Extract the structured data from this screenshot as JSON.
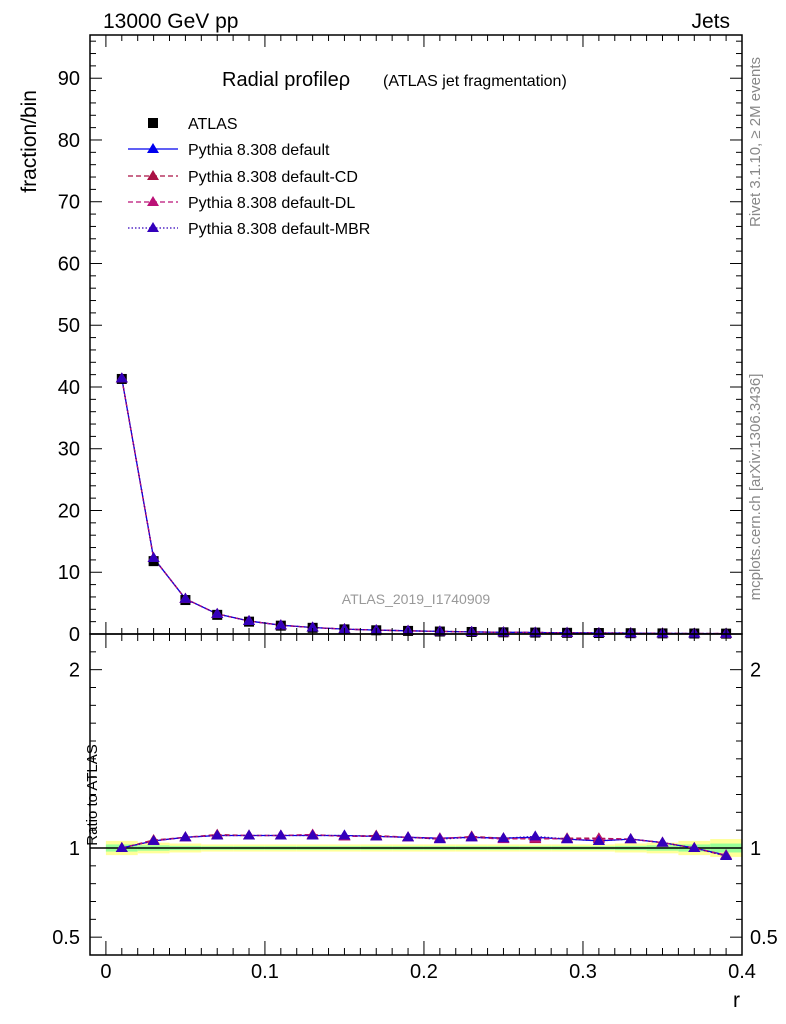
{
  "header": {
    "left_label": "13000 GeV pp",
    "right_label": "Jets"
  },
  "side_labels": {
    "rivet": "Rivet 3.1.10, ≥ 2M events",
    "mcplots": "mcplots.cern.ch [arXiv:1306.3436]"
  },
  "watermark": "ATLAS_2019_I1740909",
  "colors": {
    "atlas": "#000000",
    "default": "#0000ee",
    "cd": "#aa1144",
    "dl": "#bb1177",
    "mbr": "#3300bb",
    "band_yellow": "#ffff99",
    "band_green": "#99ff99"
  },
  "chart_data": [
    {
      "type": "line",
      "panel": "main",
      "title": "Radial profileρ",
      "subtitle": "(ATLAS jet fragmentation)",
      "ylabel": "fraction/bin",
      "xlim": [
        -0.01,
        0.4
      ],
      "ylim": [
        0,
        97
      ],
      "yticks": [
        0,
        10,
        20,
        30,
        40,
        50,
        60,
        70,
        80,
        90
      ],
      "ytick_labels": [
        "0",
        "10",
        "20",
        "30",
        "40",
        "50",
        "60",
        "70",
        "80",
        "90"
      ],
      "legend_position": "top-left",
      "x": [
        0.01,
        0.03,
        0.05,
        0.07,
        0.09,
        0.11,
        0.13,
        0.15,
        0.17,
        0.19,
        0.21,
        0.23,
        0.25,
        0.27,
        0.29,
        0.31,
        0.33,
        0.35,
        0.37,
        0.39
      ],
      "series": [
        {
          "name": "ATLAS",
          "marker": "square",
          "values": [
            41.3,
            11.8,
            5.5,
            3.1,
            2.0,
            1.35,
            1.0,
            0.75,
            0.6,
            0.5,
            0.4,
            0.33,
            0.27,
            0.23,
            0.19,
            0.16,
            0.13,
            0.1,
            0.08,
            0.06
          ]
        },
        {
          "name": "Pythia 8.308 default",
          "marker": "triangle",
          "line": "solid",
          "values": [
            41.4,
            12.3,
            5.7,
            3.25,
            2.1,
            1.42,
            1.05,
            0.79,
            0.63,
            0.52,
            0.42,
            0.34,
            0.28,
            0.24,
            0.2,
            0.17,
            0.14,
            0.1,
            0.08,
            0.06
          ]
        },
        {
          "name": "Pythia 8.308 default-CD",
          "marker": "triangle",
          "line": "dashed",
          "values": [
            41.4,
            12.3,
            5.7,
            3.25,
            2.1,
            1.42,
            1.05,
            0.79,
            0.63,
            0.52,
            0.42,
            0.34,
            0.28,
            0.24,
            0.2,
            0.17,
            0.14,
            0.1,
            0.08,
            0.06
          ]
        },
        {
          "name": "Pythia 8.308 default-DL",
          "marker": "triangle",
          "line": "dashed",
          "values": [
            41.4,
            12.3,
            5.7,
            3.25,
            2.1,
            1.42,
            1.05,
            0.79,
            0.63,
            0.52,
            0.42,
            0.34,
            0.28,
            0.24,
            0.2,
            0.17,
            0.14,
            0.1,
            0.08,
            0.06
          ]
        },
        {
          "name": "Pythia 8.308 default-MBR",
          "marker": "triangle",
          "line": "dotted",
          "values": [
            41.4,
            12.3,
            5.7,
            3.25,
            2.1,
            1.42,
            1.05,
            0.79,
            0.63,
            0.52,
            0.42,
            0.34,
            0.28,
            0.24,
            0.2,
            0.17,
            0.14,
            0.1,
            0.08,
            0.06
          ]
        }
      ]
    },
    {
      "type": "line",
      "panel": "ratio",
      "ylabel": "Ratio to ATLAS",
      "xlabel": "r",
      "xlim": [
        -0.01,
        0.4
      ],
      "ylim": [
        0.4,
        2.2
      ],
      "yticks": [
        0.5,
        1,
        2
      ],
      "ytick_labels": [
        "0.5",
        "1",
        "2"
      ],
      "xticks": [
        0,
        0.1,
        0.2,
        0.3,
        0.4
      ],
      "xtick_labels": [
        "0",
        "0.1",
        "0.2",
        "0.3",
        "0.4"
      ],
      "reference_line": 1,
      "x": [
        0.01,
        0.03,
        0.05,
        0.07,
        0.09,
        0.11,
        0.13,
        0.15,
        0.17,
        0.19,
        0.21,
        0.23,
        0.25,
        0.27,
        0.29,
        0.31,
        0.33,
        0.35,
        0.37,
        0.39
      ],
      "band_outer": [
        0.04,
        0.03,
        0.025,
        0.02,
        0.02,
        0.02,
        0.02,
        0.02,
        0.02,
        0.02,
        0.02,
        0.02,
        0.02,
        0.02,
        0.02,
        0.02,
        0.025,
        0.03,
        0.04,
        0.05
      ],
      "band_inner": [
        0.02,
        0.015,
        0.012,
        0.01,
        0.01,
        0.01,
        0.01,
        0.01,
        0.01,
        0.01,
        0.01,
        0.01,
        0.01,
        0.01,
        0.01,
        0.01,
        0.012,
        0.015,
        0.02,
        0.025
      ],
      "series": [
        {
          "name": "Pythia 8.308 default",
          "values": [
            1.0,
            1.04,
            1.06,
            1.07,
            1.07,
            1.07,
            1.07,
            1.07,
            1.065,
            1.06,
            1.055,
            1.06,
            1.055,
            1.06,
            1.05,
            1.04,
            1.05,
            1.03,
            1.0,
            0.96
          ]
        },
        {
          "name": "Pythia 8.308 default-CD",
          "values": [
            1.0,
            1.045,
            1.06,
            1.075,
            1.07,
            1.07,
            1.075,
            1.065,
            1.07,
            1.06,
            1.05,
            1.065,
            1.055,
            1.05,
            1.055,
            1.055,
            1.05,
            1.03,
            1.0,
            0.955
          ]
        },
        {
          "name": "Pythia 8.308 default-DL",
          "values": [
            1.0,
            1.04,
            1.06,
            1.07,
            1.07,
            1.07,
            1.075,
            1.065,
            1.065,
            1.06,
            1.055,
            1.06,
            1.05,
            1.055,
            1.05,
            1.05,
            1.05,
            1.03,
            1.0,
            0.96
          ]
        },
        {
          "name": "Pythia 8.308 default-MBR",
          "values": [
            1.0,
            1.04,
            1.06,
            1.07,
            1.07,
            1.07,
            1.07,
            1.07,
            1.065,
            1.06,
            1.05,
            1.06,
            1.055,
            1.065,
            1.05,
            1.04,
            1.05,
            1.03,
            1.0,
            0.955
          ]
        }
      ]
    }
  ]
}
